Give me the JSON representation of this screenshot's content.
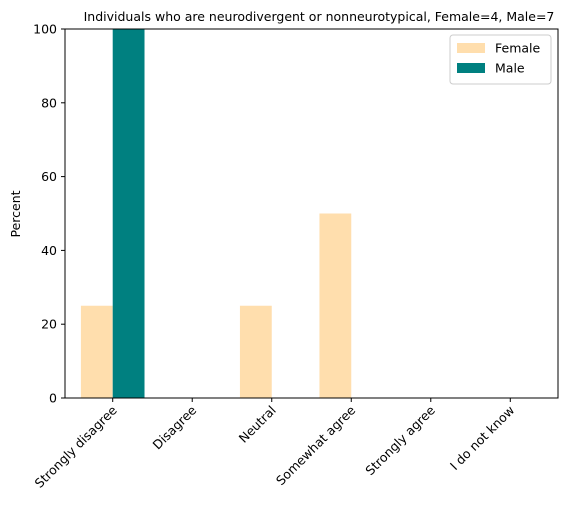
{
  "chart_data": {
    "type": "bar",
    "title": "Individuals who are neurodivergent or nonneurotypical, Female=4, Male=7",
    "xlabel": "",
    "ylabel": "Percent",
    "ylim": [
      0,
      100
    ],
    "yticks": [
      0,
      20,
      40,
      60,
      80,
      100
    ],
    "categories": [
      "Strongly disagree",
      "Disagree",
      "Neutral",
      "Somewhat agree",
      "Strongly agree",
      "I do not know"
    ],
    "series": [
      {
        "name": "Female",
        "color": "#ffdead",
        "values": [
          25,
          0,
          25,
          50,
          0,
          0
        ]
      },
      {
        "name": "Male",
        "color": "#008080",
        "values": [
          100,
          0,
          0,
          0,
          0,
          0
        ]
      }
    ],
    "legend": "top-right",
    "grid": false
  }
}
